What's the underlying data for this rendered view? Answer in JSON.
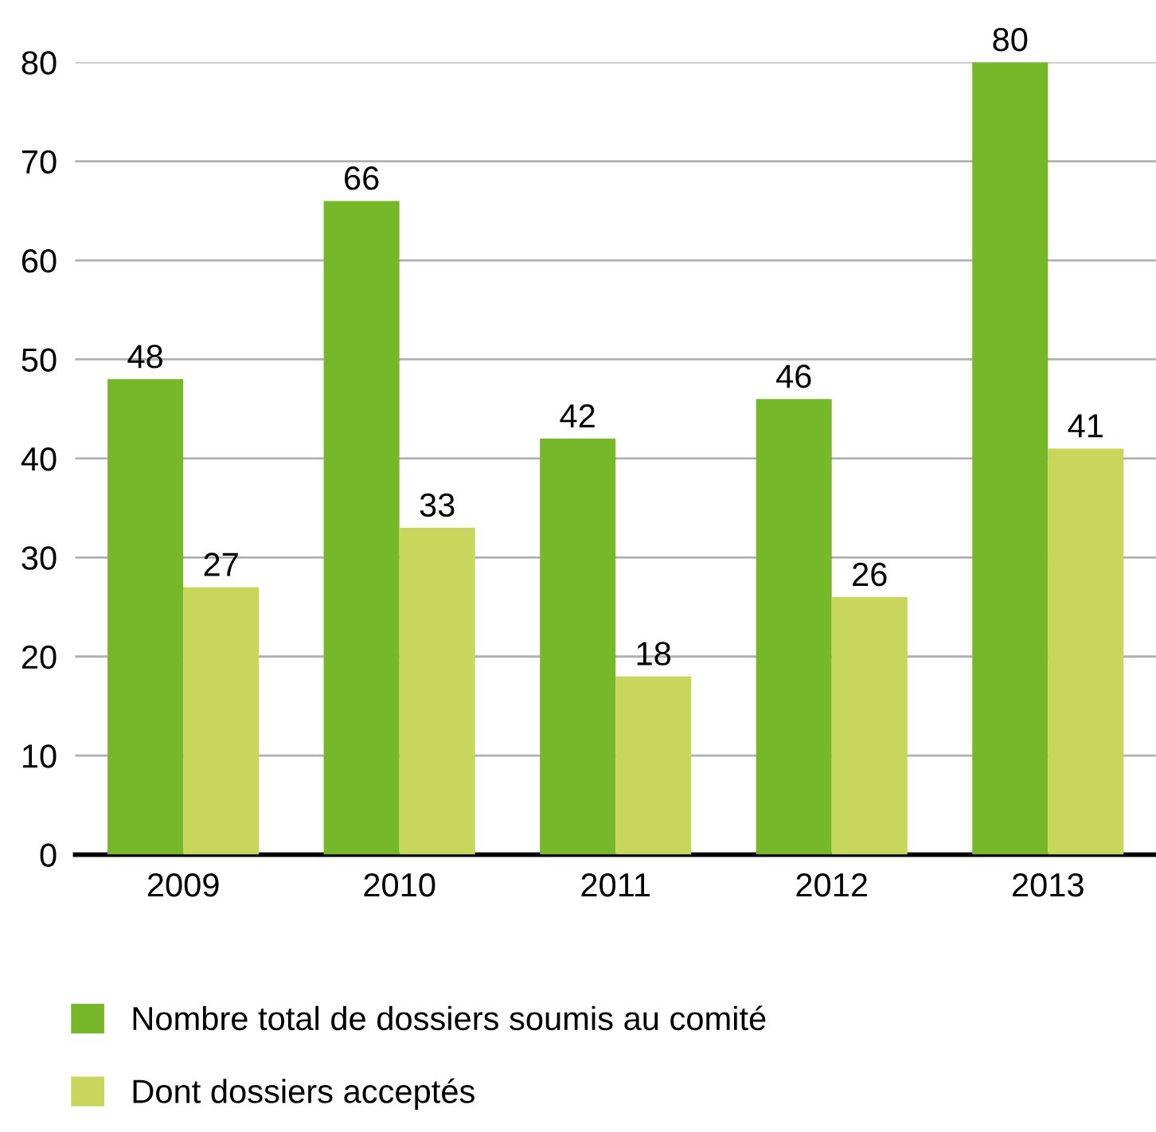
{
  "chart_data": {
    "type": "bar",
    "categories": [
      "2009",
      "2010",
      "2011",
      "2012",
      "2013"
    ],
    "series": [
      {
        "name": "Nombre total de dossiers soumis au comité",
        "color": "#77b82b",
        "values": [
          48,
          66,
          42,
          46,
          80
        ]
      },
      {
        "name": "Dont dossiers acceptés",
        "color": "#c8d65b",
        "values": [
          27,
          33,
          18,
          26,
          41
        ]
      }
    ],
    "ylim": [
      0,
      80
    ],
    "yticks": [
      0,
      10,
      20,
      30,
      40,
      50,
      60,
      70,
      80
    ],
    "grid": "y",
    "legend": "bottom",
    "data_labels": true
  }
}
